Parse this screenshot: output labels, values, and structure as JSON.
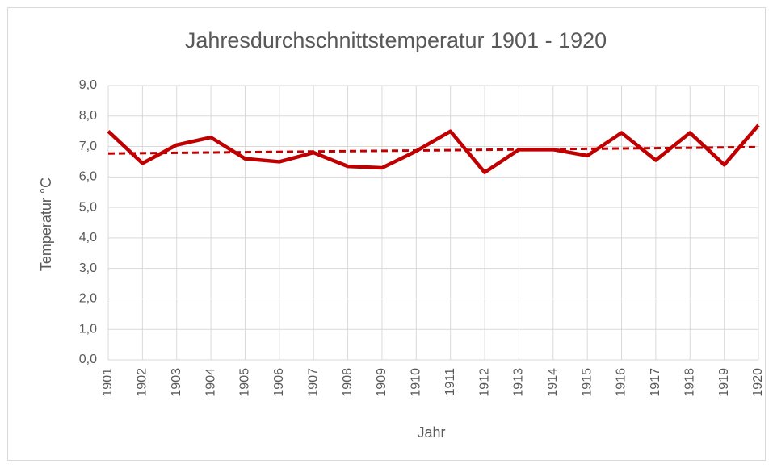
{
  "chart_data": {
    "type": "line",
    "title": "Jahresdurchschnittstemperatur 1901 - 1920",
    "x_label": "Jahr",
    "y_label": "Temperatur °C",
    "categories": [
      "1901",
      "1902",
      "1903",
      "1904",
      "1905",
      "1906",
      "1907",
      "1908",
      "1909",
      "1910",
      "1911",
      "1912",
      "1913",
      "1914",
      "1915",
      "1916",
      "1917",
      "1918",
      "1919",
      "1920"
    ],
    "series": [
      {
        "color": "#c00000",
        "values": [
          7.5,
          6.45,
          7.05,
          7.3,
          6.6,
          6.5,
          6.8,
          6.35,
          6.3,
          6.85,
          7.5,
          6.15,
          6.9,
          6.9,
          6.7,
          7.45,
          6.55,
          7.45,
          6.4,
          7.7
        ]
      }
    ],
    "trendline": {
      "color": "#c00000",
      "dashed": true,
      "values": [
        6.77,
        6.98
      ]
    },
    "ylim": [
      0,
      9
    ],
    "yticks": [
      {
        "value": 0,
        "label": "0,0"
      },
      {
        "value": 1,
        "label": "1,0"
      },
      {
        "value": 2,
        "label": "2,0"
      },
      {
        "value": 3,
        "label": "3,0"
      },
      {
        "value": 4,
        "label": "4,0"
      },
      {
        "value": 5,
        "label": "5,0"
      },
      {
        "value": 6,
        "label": "6,0"
      },
      {
        "value": 7,
        "label": "7,0"
      },
      {
        "value": 8,
        "label": "8,0"
      },
      {
        "value": 9,
        "label": "9,0"
      }
    ],
    "grid": true
  }
}
